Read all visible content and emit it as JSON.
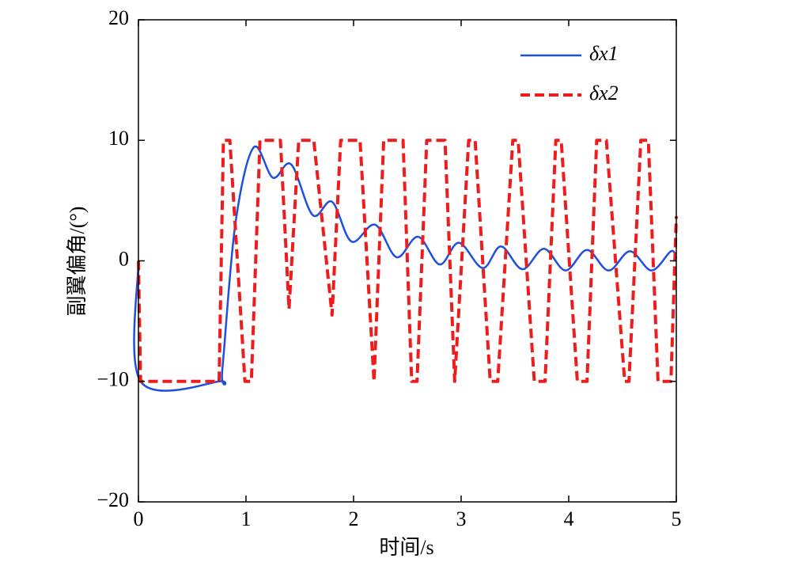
{
  "chart_data": {
    "type": "line",
    "xlabel": "时间/s",
    "ylabel": "副翼偏角/(°)",
    "xlim": [
      0,
      5
    ],
    "xticks": [
      0,
      1,
      2,
      3,
      4,
      5
    ],
    "ylim": [
      -20,
      20
    ],
    "yticks": [
      {
        "value": -20,
        "label": "−20"
      },
      {
        "value": -10,
        "label": "−10"
      },
      0,
      10,
      20
    ],
    "legend": "upper right",
    "series": [
      {
        "name": "δx1",
        "color": "#1f4fe0",
        "dash": false,
        "x": [
          0,
          0.02,
          0.75,
          0.78,
          0.9,
          1.07,
          1.25,
          1.42,
          1.62,
          1.8,
          1.98,
          2.2,
          2.4,
          2.6,
          2.8,
          2.98,
          3.2,
          3.37,
          3.57,
          3.77,
          3.97,
          4.17,
          4.37,
          4.57,
          4.77,
          4.95,
          5
        ],
        "values": [
          0,
          -10,
          -10,
          -9,
          3,
          9.4,
          6.9,
          8,
          3.8,
          4.9,
          1.6,
          3,
          0.3,
          2,
          -0.3,
          1.5,
          -0.6,
          1.2,
          -0.7,
          1,
          -0.8,
          0.9,
          -0.8,
          0.8,
          -0.8,
          0.8,
          0.2
        ]
      },
      {
        "name": "δx2",
        "color": "#ee1c1c",
        "dash": true,
        "x": [
          0,
          0.02,
          0.75,
          0.79,
          0.85,
          0.99,
          1.05,
          1.13,
          1.32,
          1.4,
          1.49,
          1.63,
          1.8,
          1.88,
          2.06,
          2.19,
          2.28,
          2.46,
          2.54,
          2.59,
          2.68,
          2.85,
          2.94,
          3.07,
          3.13,
          3.27,
          3.34,
          3.48,
          3.53,
          3.68,
          3.78,
          3.88,
          3.93,
          4.08,
          4.17,
          4.26,
          4.35,
          4.52,
          4.56,
          4.67,
          4.74,
          4.83,
          4.95,
          5
        ],
        "values": [
          0,
          -10,
          -10,
          10,
          10,
          -10,
          -10,
          10,
          10,
          -4,
          10,
          10,
          -4.5,
          10,
          10,
          -10,
          10,
          10,
          -10,
          -10,
          10,
          10,
          -10,
          10,
          10,
          -10,
          -10,
          10,
          10,
          -10,
          -10,
          10,
          10,
          -10,
          -10,
          10,
          10,
          -10,
          -10,
          10,
          10,
          -10,
          -10,
          3.7
        ]
      }
    ]
  }
}
